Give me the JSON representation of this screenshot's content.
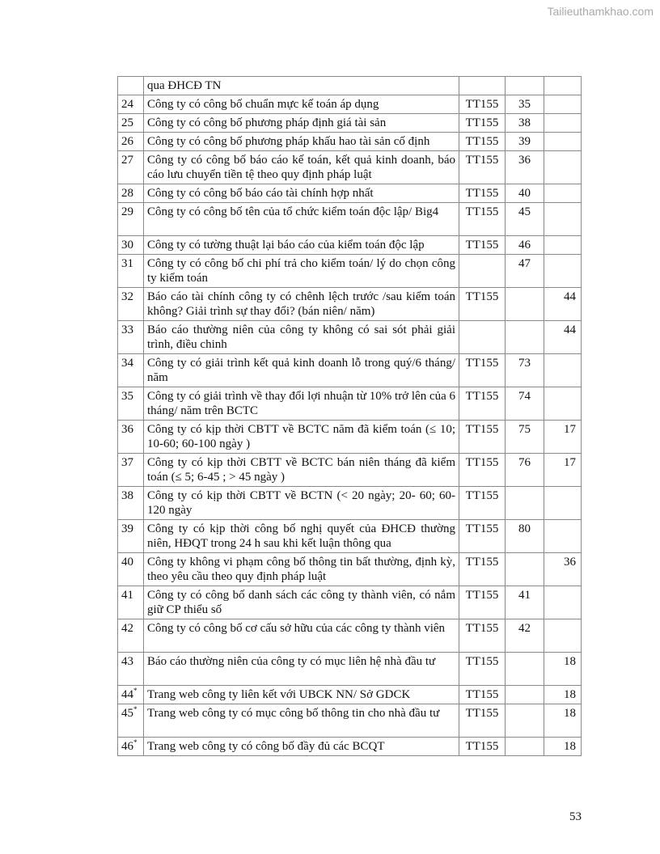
{
  "watermark": "Tailieuthamkhao.com",
  "page_number": "53",
  "rows": [
    {
      "no": "",
      "star": "",
      "text": "qua ĐHCĐ TN",
      "source": "",
      "c1": "",
      "c2": "",
      "lines": 1
    },
    {
      "no": "24",
      "star": "",
      "text": "Công ty có công bố chuẩn mực kế toán áp dụng",
      "source": "TT155",
      "c1": "35",
      "c2": "",
      "lines": 1
    },
    {
      "no": "25",
      "star": "",
      "text": "Công ty có công bố phương pháp định giá tài sản",
      "source": "TT155",
      "c1": "38",
      "c2": "",
      "lines": 1
    },
    {
      "no": "26",
      "star": "",
      "text": "Công ty có công bố phương pháp khấu hao tài sản cố định",
      "source": "TT155",
      "c1": "39",
      "c2": "",
      "lines": 1
    },
    {
      "no": "27",
      "star": "",
      "text": "Công ty có công bố báo cáo kế toán, kết quả kinh doanh, báo cáo lưu chuyển tiền tệ theo quy định pháp luật",
      "source": "TT155",
      "c1": "36",
      "c2": "",
      "lines": 2
    },
    {
      "no": "28",
      "star": "",
      "text": "Công ty có công bố báo cáo tài chính hợp nhất",
      "source": "TT155",
      "c1": "40",
      "c2": "",
      "lines": 1
    },
    {
      "no": "29",
      "star": "",
      "text": "Công ty có công bố tên của tổ chức kiểm toán độc lập/ Big4",
      "source": "TT155",
      "c1": "45",
      "c2": "",
      "lines": 2
    },
    {
      "no": "30",
      "star": "",
      "text": "Công ty có tường thuật lại báo cáo của kiểm toán độc lập",
      "source": "TT155",
      "c1": "46",
      "c2": "",
      "lines": 1
    },
    {
      "no": "31",
      "star": "",
      "text": "Công ty có công bố chi phí trả cho kiểm toán/ lý do chọn công ty kiểm toán",
      "source": "",
      "c1": "47",
      "c2": "",
      "lines": 2
    },
    {
      "no": "32",
      "star": "",
      "text": "Báo cáo tài chính công ty có chênh lệch trước /sau kiểm toán không? Giải trình sự thay đổi? (bán niên/ năm)",
      "source": "TT155",
      "c1": "",
      "c2": "44",
      "lines": 2
    },
    {
      "no": "33",
      "star": "",
      "text": "Báo cáo thường niên của công ty không có sai sót phải giải trình, điều chinh",
      "source": "",
      "c1": "",
      "c2": "44",
      "lines": 2
    },
    {
      "no": "34",
      "star": "",
      "text": "Công ty có giải trình kết quả kinh doanh lỗ trong quý/6 tháng/ năm",
      "source": "TT155",
      "c1": "73",
      "c2": "",
      "lines": 2
    },
    {
      "no": "35",
      "star": "",
      "text": "Công ty có giải trình về thay đổi lợi nhuận từ 10% trở lên của 6 tháng/ năm trên BCTC",
      "source": "TT155",
      "c1": "74",
      "c2": "",
      "lines": 2
    },
    {
      "no": "36",
      "star": "",
      "text": "Công ty có kịp thời CBTT về BCTC năm đã kiểm toán (≤ 10; 10-60; 60-100 ngày )",
      "source": "TT155",
      "c1": "75",
      "c2": "17",
      "lines": 2
    },
    {
      "no": "37",
      "star": "",
      "text": "Công ty có kịp thời CBTT về BCTC bán niên tháng đã kiểm toán (≤ 5;  6-45 ;  > 45 ngày )",
      "source": "TT155",
      "c1": "76",
      "c2": "17",
      "lines": 2
    },
    {
      "no": "38",
      "star": "",
      "text": "Công ty có kịp thời CBTT về BCTN (< 20 ngày; 20- 60; 60-120 ngày",
      "source": "TT155",
      "c1": "",
      "c2": "",
      "lines": 2
    },
    {
      "no": "39",
      "star": "",
      "text": "Công ty có kịp thời công bố nghị quyết của ĐHCĐ thường niên, HĐQT trong 24 h sau khi kết luận thông qua",
      "source": "TT155",
      "c1": "80",
      "c2": "",
      "lines": 2
    },
    {
      "no": "40",
      "star": "",
      "text": "Công ty không vi phạm công bố thông tin bất thường, định kỳ, theo yêu cầu theo quy định pháp luật",
      "source": "TT155",
      "c1": "",
      "c2": "36",
      "lines": 2
    },
    {
      "no": "41",
      "star": "",
      "text": "Công ty có công bố danh sách các công ty thành viên, có nắm giữ CP thiểu số",
      "source": "TT155",
      "c1": "41",
      "c2": "",
      "lines": 2
    },
    {
      "no": "42",
      "star": "",
      "text": "Công ty có công bố cơ cấu sở hữu của các công ty thành viên",
      "source": "TT155",
      "c1": "42",
      "c2": "",
      "lines": 2
    },
    {
      "no": "43",
      "star": "",
      "text": "Báo cáo thường niên của công ty có mục liên hệ nhà đầu tư",
      "source": "TT155",
      "c1": "",
      "c2": "18",
      "lines": 2
    },
    {
      "no": "44",
      "star": "*",
      "text": "Trang web công ty liên kết với UBCK NN/ Sở GDCK",
      "source": "TT155",
      "c1": "",
      "c2": "18",
      "lines": 1
    },
    {
      "no": "45",
      "star": "*",
      "text": "Trang web công ty có mục công bố thông tin cho nhà đầu tư",
      "source": "TT155",
      "c1": "",
      "c2": "18",
      "lines": 2
    },
    {
      "no": "46",
      "star": "*",
      "text": "Trang web công ty có công bố đầy đủ các BCQT",
      "source": "TT155",
      "c1": "",
      "c2": "18",
      "lines": 1
    }
  ]
}
